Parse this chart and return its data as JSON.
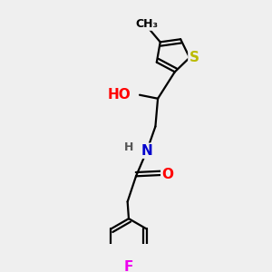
{
  "background_color": "#efefef",
  "atom_colors": {
    "O": "#ff0000",
    "N": "#0000cc",
    "S": "#bbbb00",
    "F": "#ee00ee",
    "C": "#000000",
    "H": "#555555"
  },
  "bond_color": "#000000",
  "bond_width": 1.6,
  "font_size_atom": 11,
  "font_size_small": 9,
  "xlim": [
    0,
    10
  ],
  "ylim": [
    0,
    10
  ]
}
